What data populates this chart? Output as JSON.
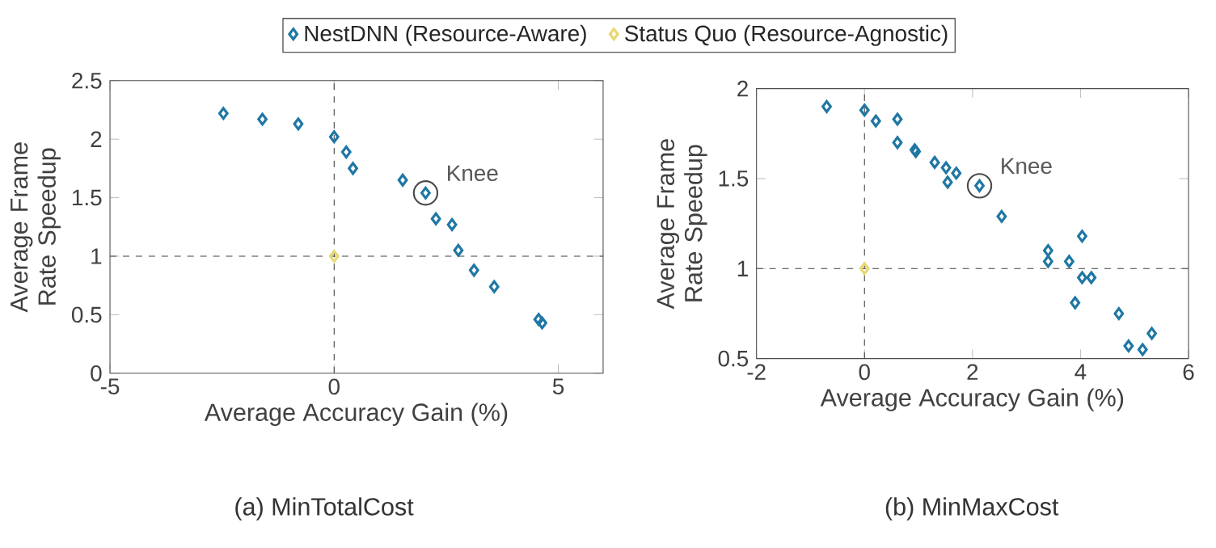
{
  "chart_data": [
    {
      "type": "scatter",
      "title": "(a) MinTotalCost",
      "xlabel": "Average Accuracy Gain (%)",
      "ylabel": "Average Frame Rate Speedup",
      "xlim": [
        -5,
        6
      ],
      "xticks": [
        -5,
        0,
        5
      ],
      "ylim": [
        0,
        2.5
      ],
      "yticks": [
        0,
        0.5,
        1,
        1.5,
        2,
        2.5
      ],
      "marker": "diamond",
      "legend": "top",
      "series": [
        {
          "name": "NestDNN (Resource-Aware)",
          "color": "#1f77a4",
          "x": [
            -2.47,
            -1.6,
            -0.8,
            0,
            0.27,
            0.42,
            1.53,
            2.04,
            2.27,
            2.63,
            2.77,
            3.12,
            3.57,
            4.56,
            4.64
          ],
          "values": [
            2.22,
            2.17,
            2.13,
            2.02,
            1.89,
            1.75,
            1.65,
            1.54,
            1.32,
            1.27,
            1.05,
            0.88,
            0.74,
            0.46,
            0.43
          ]
        },
        {
          "name": "Status Quo (Resource-Agnostic)",
          "color": "#e8d870",
          "x": [
            0
          ],
          "values": [
            1
          ]
        }
      ],
      "ref_lines": [
        {
          "axis": "x",
          "value": 0,
          "line_style": "dashed",
          "color": "#404040"
        },
        {
          "axis": "y",
          "value": 1,
          "line_style": "dashed",
          "color": "#404040"
        }
      ],
      "annotations": [
        {
          "text": "Knee",
          "x": 2.04,
          "y": 1.54
        }
      ]
    },
    {
      "type": "scatter",
      "title": "(b) MinMaxCost",
      "xlabel": "Average Accuracy Gain (%)",
      "ylabel": "Average Frame Rate Speedup",
      "xlim": [
        -2,
        6
      ],
      "xticks": [
        -2,
        0,
        2,
        4,
        6
      ],
      "ylim": [
        0.5,
        2
      ],
      "yticks": [
        0.5,
        1,
        1.5,
        2
      ],
      "marker": "diamond",
      "series": [
        {
          "color": "#1f77a4",
          "x": [
            -0.7,
            0,
            0.21,
            0.61,
            0.61,
            0.93,
            0.95,
            1.3,
            1.51,
            1.7,
            1.54,
            2.13,
            2.54,
            3.4,
            3.4,
            3.79,
            4.03,
            4.03,
            4.2,
            3.9,
            4.71,
            4.89,
            5.15,
            5.32
          ],
          "values": [
            1.9,
            1.88,
            1.82,
            1.83,
            1.7,
            1.66,
            1.65,
            1.59,
            1.56,
            1.53,
            1.48,
            1.46,
            1.29,
            1.1,
            1.04,
            1.04,
            1.18,
            0.95,
            0.95,
            0.81,
            0.75,
            0.57,
            0.55,
            0.64
          ]
        },
        {
          "color": "#e8d870",
          "x": [
            0
          ],
          "values": [
            1
          ]
        }
      ],
      "ref_lines": [
        {
          "axis": "x",
          "value": 0,
          "line_style": "dashed",
          "color": "#404040"
        },
        {
          "axis": "y",
          "value": 1,
          "line_style": "dashed",
          "color": "#404040"
        }
      ],
      "annotations": [
        {
          "text": "Knee",
          "x": 2.13,
          "y": 1.46
        }
      ]
    }
  ]
}
